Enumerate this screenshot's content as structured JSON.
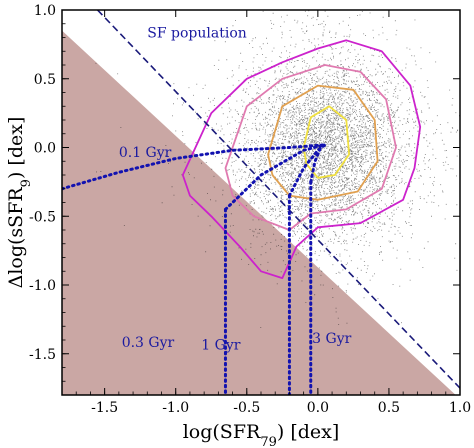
{
  "chart_data": {
    "type": "scatter",
    "xlabel": "log(SFR",
    "xlabel_sub": "79",
    "xlabel_unit": ") [dex]",
    "ylabel": "Δlog(sSFR",
    "ylabel_sub": "9",
    "ylabel_unit": ") [dex]",
    "xlim": [
      -1.8,
      1.0
    ],
    "ylim": [
      -1.8,
      1.0
    ],
    "x_ticks": [
      -1.5,
      -1.0,
      -0.5,
      0.0,
      0.5,
      1.0
    ],
    "x_tick_labels": [
      "-1.5",
      "-1.0",
      "-0.5",
      "0.0",
      "0.5",
      "1.0"
    ],
    "y_ticks": [
      -1.5,
      -1.0,
      -0.5,
      0.0,
      0.5,
      1.0
    ],
    "y_tick_labels": [
      "-1.5",
      "-1.0",
      "-0.5",
      "0.0",
      "0.5",
      "1.0"
    ],
    "colors": {
      "excluded_region": "#caa7a4",
      "points": "#1a1a1a",
      "sf_line": "#1a1a7a",
      "tracks": "#1212b0",
      "contour_outer": "#cc22cc",
      "contour_mid": "#e07ab0",
      "contour_inner": "#e0a050",
      "contour_core": "#f0e040"
    },
    "excluded_region": {
      "polygon": [
        [
          -1.8,
          0.85
        ],
        [
          0.97,
          -1.8
        ],
        [
          -1.8,
          -1.8
        ]
      ]
    },
    "sf_population_line": {
      "label": "SF population",
      "points": [
        [
          -1.55,
          1.0
        ],
        [
          1.0,
          -1.75
        ]
      ]
    },
    "point_cloud": {
      "center": [
        0.05,
        0.0
      ],
      "spread": [
        0.28,
        0.32
      ]
    },
    "contours": [
      {
        "level": "outer",
        "color": "#cc22cc",
        "points": [
          [
            -0.95,
            -0.2
          ],
          [
            -0.75,
            0.25
          ],
          [
            -0.5,
            0.5
          ],
          [
            -0.25,
            0.62
          ],
          [
            0.0,
            0.72
          ],
          [
            0.2,
            0.78
          ],
          [
            0.45,
            0.7
          ],
          [
            0.65,
            0.45
          ],
          [
            0.72,
            0.15
          ],
          [
            0.68,
            -0.15
          ],
          [
            0.6,
            -0.38
          ],
          [
            0.3,
            -0.55
          ],
          [
            0.0,
            -0.58
          ],
          [
            -0.15,
            -0.72
          ],
          [
            -0.25,
            -0.95
          ],
          [
            -0.4,
            -0.9
          ],
          [
            -0.55,
            -0.72
          ],
          [
            -0.75,
            -0.5
          ],
          [
            -0.9,
            -0.35
          ]
        ]
      },
      {
        "level": "mid",
        "color": "#e07ab0",
        "points": [
          [
            -0.65,
            -0.15
          ],
          [
            -0.5,
            0.3
          ],
          [
            -0.25,
            0.5
          ],
          [
            0.05,
            0.6
          ],
          [
            0.3,
            0.55
          ],
          [
            0.48,
            0.35
          ],
          [
            0.55,
            0.0
          ],
          [
            0.45,
            -0.3
          ],
          [
            0.2,
            -0.45
          ],
          [
            -0.05,
            -0.48
          ],
          [
            -0.2,
            -0.6
          ],
          [
            -0.45,
            -0.5
          ],
          [
            -0.6,
            -0.35
          ]
        ]
      },
      {
        "level": "inner",
        "color": "#e0a050",
        "points": [
          [
            -0.35,
            -0.05
          ],
          [
            -0.25,
            0.3
          ],
          [
            0.0,
            0.45
          ],
          [
            0.25,
            0.42
          ],
          [
            0.4,
            0.2
          ],
          [
            0.42,
            -0.1
          ],
          [
            0.28,
            -0.32
          ],
          [
            0.0,
            -0.38
          ],
          [
            -0.2,
            -0.35
          ],
          [
            -0.32,
            -0.2
          ]
        ]
      },
      {
        "level": "core",
        "color": "#f0e040",
        "points": [
          [
            -0.1,
            0.0
          ],
          [
            -0.05,
            0.22
          ],
          [
            0.08,
            0.3
          ],
          [
            0.2,
            0.2
          ],
          [
            0.22,
            -0.05
          ],
          [
            0.12,
            -0.2
          ],
          [
            0.0,
            -0.22
          ],
          [
            -0.08,
            -0.12
          ]
        ]
      }
    ],
    "tracks": [
      {
        "label": "0.1 Gyr",
        "label_pos": [
          -1.4,
          -0.07
        ],
        "curve": [
          [
            -1.8,
            -0.3
          ],
          [
            -1.4,
            -0.18
          ],
          [
            -1.0,
            -0.08
          ],
          [
            -0.6,
            -0.02
          ],
          [
            -0.2,
            0.0
          ],
          [
            0.05,
            0.02
          ]
        ],
        "drop_x": null
      },
      {
        "label": "0.3 Gyr",
        "label_pos": [
          -1.38,
          -1.45
        ],
        "curve": [
          [
            -0.65,
            -0.45
          ],
          [
            -0.4,
            -0.2
          ],
          [
            -0.1,
            -0.02
          ],
          [
            0.05,
            0.02
          ]
        ],
        "drop_x": -0.65
      },
      {
        "label": "1 Gyr",
        "label_pos": [
          -0.82,
          -1.47
        ],
        "curve": [
          [
            -0.2,
            -0.35
          ],
          [
            -0.1,
            -0.15
          ],
          [
            0.0,
            -0.02
          ],
          [
            0.05,
            0.02
          ]
        ],
        "drop_x": -0.2
      },
      {
        "label": "3 Gyr",
        "label_pos": [
          -0.04,
          -1.42
        ],
        "curve": [
          [
            -0.05,
            -0.25
          ],
          [
            -0.02,
            -0.1
          ],
          [
            0.02,
            0.0
          ],
          [
            0.05,
            0.02
          ]
        ],
        "drop_x": -0.05
      }
    ]
  }
}
